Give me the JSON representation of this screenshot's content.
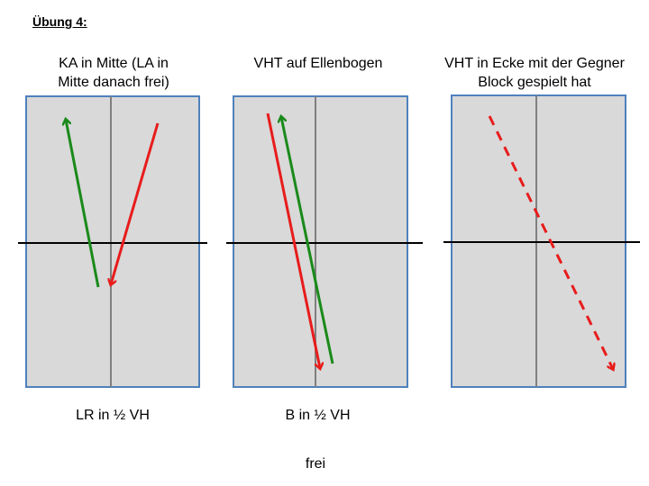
{
  "heading": "Übung 4:",
  "panels": [
    {
      "title_line1": "KA in Mitte (LA in",
      "title_line2": "Mitte danach frei)",
      "caption": "LR in ½ VH"
    },
    {
      "title_line1": "VHT auf Ellenbogen",
      "title_line2": "",
      "caption": "B in ½ VH"
    },
    {
      "title_line1": "VHT in Ecke mit der Gegner",
      "title_line2": "Block gespielt hat",
      "caption": ""
    }
  ],
  "footer": "frei",
  "colors": {
    "court_fill": "#d9d9d9",
    "court_border": "#4f81bd",
    "center_line": "#808080",
    "net_line": "#000000",
    "arrow_green": "#1a8a1a",
    "arrow_red": "#e81c1c"
  }
}
